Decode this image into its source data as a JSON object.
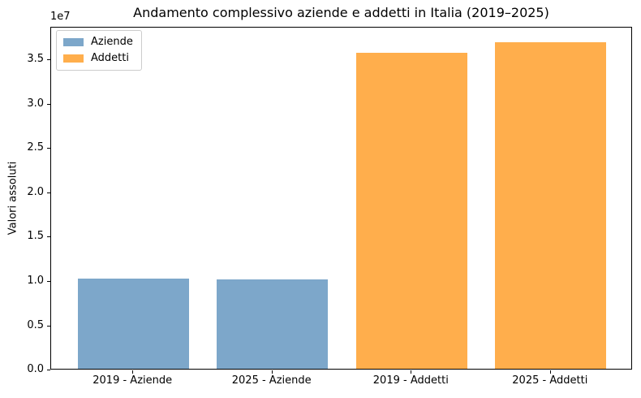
{
  "chart_data": {
    "type": "bar",
    "title": "Andamento complessivo aziende e addetti in Italia (2019–2025)",
    "xlabel": "",
    "ylabel": "Valori assoluti",
    "categories": [
      "2019 - Aziende",
      "2025 - Aziende",
      "2019 - Addetti",
      "2025 - Addetti"
    ],
    "values": [
      10200000,
      10050000,
      35700000,
      36900000
    ],
    "bar_colors": [
      "#7da7ca",
      "#7da7ca",
      "#ffae4c",
      "#ffae4c"
    ],
    "ylim": [
      0,
      38700000
    ],
    "yticks": [
      0,
      5000000,
      10000000,
      15000000,
      20000000,
      25000000,
      30000000,
      35000000
    ],
    "ytick_labels": [
      "0.0",
      "0.5",
      "1.0",
      "1.5",
      "2.0",
      "2.5",
      "3.0",
      "3.5"
    ],
    "y_offset_label": "1e7",
    "grid": false,
    "legend": {
      "position": "upper left",
      "items": [
        {
          "label": "Aziende",
          "color": "#7da7ca"
        },
        {
          "label": "Addetti",
          "color": "#ffae4c"
        }
      ]
    },
    "style": {
      "background": "#ffffff",
      "spine_color": "#000000",
      "text_color": "#000000",
      "legend_border": "#cccccc"
    }
  }
}
